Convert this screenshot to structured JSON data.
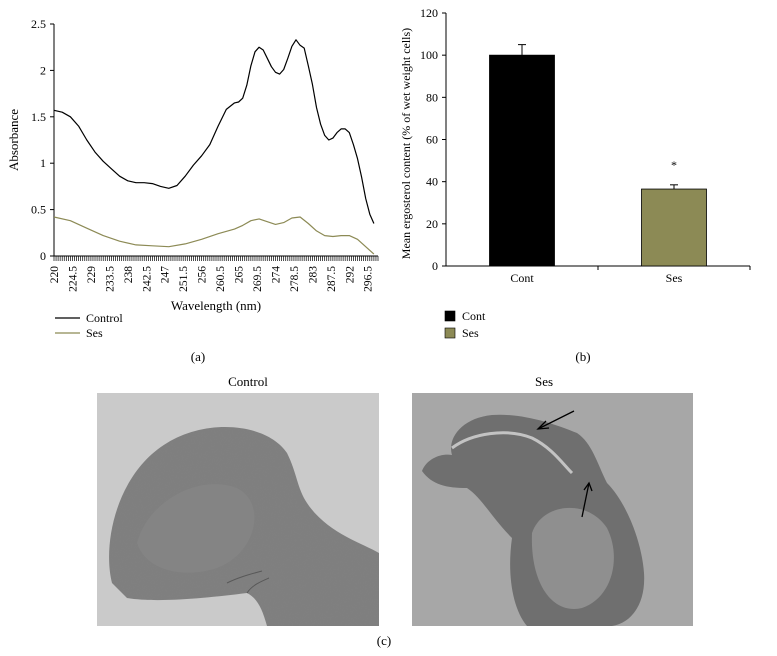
{
  "panel_labels": {
    "a": "(a)",
    "b": "(b)",
    "c": "(c)"
  },
  "colors": {
    "control": "#000000",
    "ses": "#8c8a55"
  },
  "chart_data": [
    {
      "type": "line",
      "panel": "(a)",
      "title": "",
      "xlabel": "Wavelength (nm)",
      "ylabel": "Absorbance",
      "xlim": [
        220,
        299
      ],
      "ylim": [
        0,
        2.5
      ],
      "x_ticks": [
        "220",
        "224.5",
        "229",
        "233.5",
        "238",
        "242.5",
        "247",
        "251.5",
        "256",
        "260.5",
        "265",
        "269.5",
        "274",
        "278.5",
        "283",
        "287.5",
        "292",
        "296.5"
      ],
      "y_ticks": [
        "0",
        "0.5",
        "1",
        "1.5",
        "2",
        "2.5"
      ],
      "legend_position": "bottom-left",
      "series": [
        {
          "name": "Control",
          "color": "#000000",
          "x": [
            220,
            222,
            224,
            226,
            228,
            230,
            232,
            234,
            236,
            238,
            240,
            242,
            244,
            246,
            248,
            250,
            252,
            254,
            256,
            258,
            260,
            262,
            264,
            265,
            266,
            267,
            268,
            269,
            270,
            271,
            272,
            273,
            274,
            275,
            276,
            277,
            278,
            279,
            280,
            281,
            282,
            283,
            284,
            285,
            286,
            287,
            288,
            289,
            290,
            291,
            292,
            293,
            294,
            295,
            296,
            297,
            298
          ],
          "y": [
            1.57,
            1.55,
            1.5,
            1.4,
            1.25,
            1.12,
            1.02,
            0.94,
            0.86,
            0.81,
            0.79,
            0.79,
            0.78,
            0.75,
            0.73,
            0.76,
            0.86,
            0.98,
            1.08,
            1.2,
            1.4,
            1.58,
            1.65,
            1.66,
            1.7,
            1.84,
            2.05,
            2.2,
            2.25,
            2.22,
            2.13,
            2.04,
            1.98,
            1.96,
            2.01,
            2.13,
            2.26,
            2.33,
            2.27,
            2.24,
            2.05,
            1.85,
            1.6,
            1.42,
            1.3,
            1.25,
            1.27,
            1.33,
            1.37,
            1.37,
            1.33,
            1.2,
            1.05,
            0.85,
            0.62,
            0.45,
            0.35
          ]
        },
        {
          "name": "Ses",
          "color": "#8c8a55",
          "x": [
            220,
            224,
            228,
            232,
            236,
            240,
            244,
            248,
            252,
            256,
            260,
            264,
            266,
            268,
            270,
            272,
            274,
            276,
            278,
            280,
            282,
            284,
            286,
            288,
            290,
            292,
            294,
            296,
            298
          ],
          "y": [
            0.42,
            0.38,
            0.3,
            0.22,
            0.16,
            0.12,
            0.11,
            0.1,
            0.13,
            0.18,
            0.24,
            0.29,
            0.33,
            0.38,
            0.4,
            0.37,
            0.34,
            0.36,
            0.41,
            0.42,
            0.35,
            0.27,
            0.22,
            0.21,
            0.22,
            0.22,
            0.18,
            0.1,
            0.02
          ]
        }
      ]
    },
    {
      "type": "bar",
      "panel": "(b)",
      "title": "",
      "ylabel": "Mean ergosterol content (% of wet weight cells)",
      "categories": [
        "Cont",
        "Ses"
      ],
      "values": [
        100,
        36.5
      ],
      "errors": [
        5,
        2
      ],
      "significance": [
        "",
        "*"
      ],
      "colors": [
        "#000000",
        "#8c8a55"
      ],
      "ylim": [
        0,
        120
      ],
      "y_ticks": [
        "0",
        "20",
        "40",
        "60",
        "80",
        "100",
        "120"
      ],
      "legend": [
        "Cont",
        "Ses"
      ],
      "legend_position": "bottom-left"
    }
  ],
  "micrographs": [
    {
      "title": "Control"
    },
    {
      "title": "Ses"
    }
  ]
}
